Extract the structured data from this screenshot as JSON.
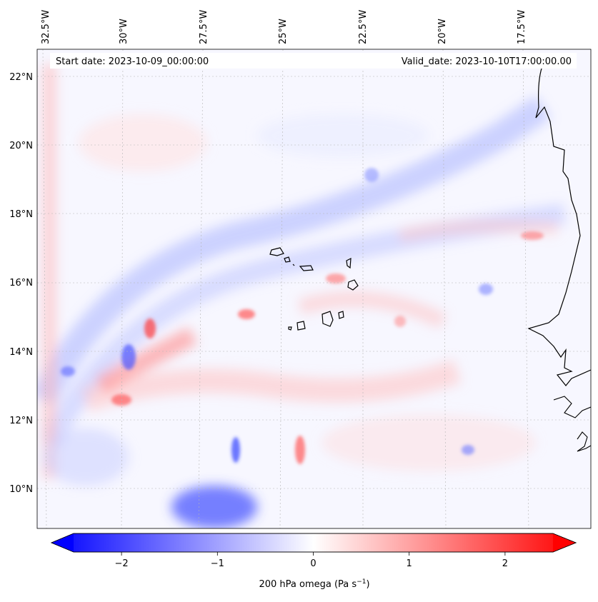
{
  "map": {
    "header": {
      "start_text": "Start date: 2023-10-09_00:00:00",
      "valid_text": "Valid_date: 2023-10-10T17:00:00.00"
    },
    "longitude_labels": [
      "32.5°W",
      "30°W",
      "27.5°W",
      "25°W",
      "22.5°W",
      "20°W",
      "17.5°W"
    ],
    "latitude_labels": [
      "22°N",
      "20°N",
      "18°N",
      "16°N",
      "14°N",
      "12°N",
      "10°N"
    ],
    "field": "200 hPa omega",
    "units": "Pa s",
    "units_exponent": "−1"
  },
  "colorbar": {
    "ticks": [
      "−2",
      "−1",
      "0",
      "1",
      "2"
    ],
    "tick_values": [
      -2,
      -1,
      0,
      1,
      2
    ],
    "range": [
      -2.5,
      2.5
    ],
    "colors": {
      "negative": "#0000ff",
      "zero": "#ffffff",
      "positive": "#ff0000"
    }
  }
}
